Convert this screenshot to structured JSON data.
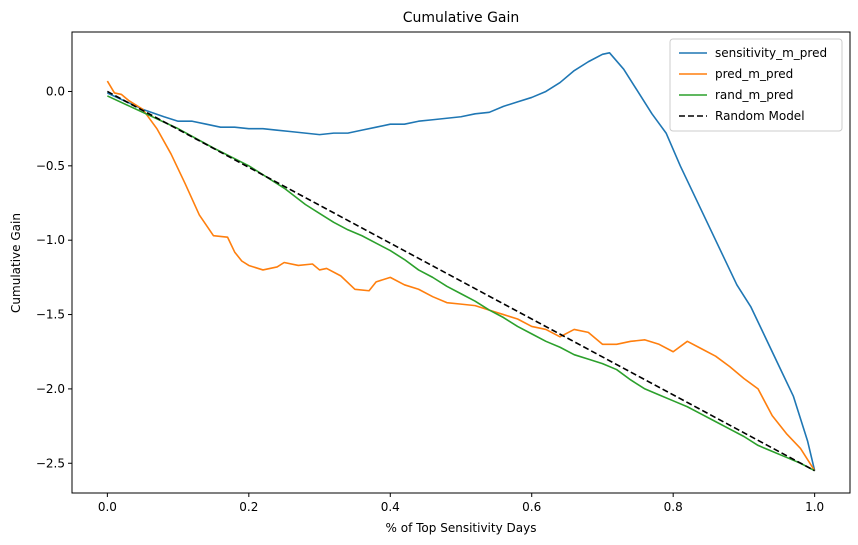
{
  "chart_data": {
    "type": "line",
    "title": "Cumulative Gain",
    "xlabel": "% of Top Sensitivity Days",
    "ylabel": "Cumulative Gain",
    "xlim": [
      -0.05,
      1.05
    ],
    "ylim": [
      -2.7,
      0.4
    ],
    "xticks": [
      0.0,
      0.2,
      0.4,
      0.6,
      0.8,
      1.0
    ],
    "xtick_labels": [
      "0.0",
      "0.2",
      "0.4",
      "0.6",
      "0.8",
      "1.0"
    ],
    "yticks": [
      0.0,
      -0.5,
      -1.0,
      -1.5,
      -2.0,
      -2.5
    ],
    "ytick_labels": [
      "0.0",
      "−0.5",
      "−1.0",
      "−1.5",
      "−2.0",
      "−2.5"
    ],
    "grid": false,
    "legend_position": "top-right",
    "series": [
      {
        "name": "sensitivity_m_pred",
        "color": "#1f77b4",
        "style": "solid",
        "x": [
          0.0,
          0.05,
          0.08,
          0.1,
          0.12,
          0.14,
          0.16,
          0.18,
          0.2,
          0.22,
          0.24,
          0.26,
          0.28,
          0.3,
          0.32,
          0.34,
          0.36,
          0.38,
          0.4,
          0.42,
          0.44,
          0.46,
          0.48,
          0.5,
          0.52,
          0.54,
          0.56,
          0.58,
          0.6,
          0.62,
          0.64,
          0.66,
          0.68,
          0.7,
          0.71,
          0.73,
          0.75,
          0.77,
          0.79,
          0.81,
          0.83,
          0.85,
          0.87,
          0.89,
          0.91,
          0.93,
          0.95,
          0.97,
          0.99,
          1.0
        ],
        "values": [
          -0.01,
          -0.12,
          -0.17,
          -0.2,
          -0.2,
          -0.22,
          -0.24,
          -0.24,
          -0.25,
          -0.25,
          -0.26,
          -0.27,
          -0.28,
          -0.29,
          -0.28,
          -0.28,
          -0.26,
          -0.24,
          -0.22,
          -0.22,
          -0.2,
          -0.19,
          -0.18,
          -0.17,
          -0.15,
          -0.14,
          -0.1,
          -0.07,
          -0.04,
          0.0,
          0.06,
          0.14,
          0.2,
          0.25,
          0.26,
          0.15,
          0.0,
          -0.15,
          -0.28,
          -0.5,
          -0.7,
          -0.9,
          -1.1,
          -1.3,
          -1.45,
          -1.65,
          -1.85,
          -2.05,
          -2.35,
          -2.55
        ]
      },
      {
        "name": "pred_m_pred",
        "color": "#ff7f0e",
        "style": "solid",
        "x": [
          0.0,
          0.01,
          0.02,
          0.03,
          0.05,
          0.07,
          0.09,
          0.11,
          0.13,
          0.15,
          0.17,
          0.18,
          0.19,
          0.2,
          0.22,
          0.24,
          0.25,
          0.27,
          0.29,
          0.3,
          0.31,
          0.33,
          0.35,
          0.37,
          0.38,
          0.4,
          0.42,
          0.44,
          0.46,
          0.48,
          0.5,
          0.52,
          0.54,
          0.56,
          0.58,
          0.6,
          0.62,
          0.64,
          0.66,
          0.68,
          0.7,
          0.72,
          0.74,
          0.76,
          0.78,
          0.8,
          0.82,
          0.84,
          0.86,
          0.88,
          0.9,
          0.92,
          0.94,
          0.96,
          0.98,
          1.0
        ],
        "values": [
          0.07,
          -0.01,
          -0.02,
          -0.06,
          -0.12,
          -0.25,
          -0.42,
          -0.62,
          -0.83,
          -0.97,
          -0.98,
          -1.08,
          -1.14,
          -1.17,
          -1.2,
          -1.18,
          -1.15,
          -1.17,
          -1.16,
          -1.2,
          -1.19,
          -1.24,
          -1.33,
          -1.34,
          -1.28,
          -1.25,
          -1.3,
          -1.33,
          -1.38,
          -1.42,
          -1.43,
          -1.44,
          -1.47,
          -1.5,
          -1.53,
          -1.58,
          -1.6,
          -1.65,
          -1.6,
          -1.62,
          -1.7,
          -1.7,
          -1.68,
          -1.67,
          -1.7,
          -1.75,
          -1.68,
          -1.73,
          -1.78,
          -1.85,
          -1.93,
          -2.0,
          -2.18,
          -2.3,
          -2.4,
          -2.55
        ]
      },
      {
        "name": "rand_m_pred",
        "color": "#2ca02c",
        "style": "solid",
        "x": [
          0.0,
          0.05,
          0.1,
          0.15,
          0.2,
          0.25,
          0.28,
          0.3,
          0.32,
          0.34,
          0.36,
          0.38,
          0.4,
          0.42,
          0.44,
          0.46,
          0.48,
          0.5,
          0.52,
          0.54,
          0.56,
          0.58,
          0.6,
          0.62,
          0.64,
          0.66,
          0.68,
          0.7,
          0.72,
          0.74,
          0.76,
          0.78,
          0.8,
          0.82,
          0.84,
          0.86,
          0.88,
          0.9,
          0.92,
          0.94,
          0.96,
          0.98,
          1.0
        ],
        "values": [
          -0.03,
          -0.14,
          -0.25,
          -0.38,
          -0.5,
          -0.65,
          -0.76,
          -0.82,
          -0.88,
          -0.93,
          -0.97,
          -1.02,
          -1.07,
          -1.13,
          -1.2,
          -1.25,
          -1.31,
          -1.36,
          -1.41,
          -1.47,
          -1.52,
          -1.58,
          -1.63,
          -1.68,
          -1.72,
          -1.77,
          -1.8,
          -1.83,
          -1.87,
          -1.94,
          -2.0,
          -2.04,
          -2.08,
          -2.12,
          -2.17,
          -2.22,
          -2.27,
          -2.32,
          -2.38,
          -2.42,
          -2.46,
          -2.5,
          -2.55
        ]
      },
      {
        "name": "Random Model",
        "color": "#000000",
        "style": "dashed",
        "x": [
          0.0,
          1.0
        ],
        "values": [
          0.0,
          -2.55
        ]
      }
    ]
  }
}
